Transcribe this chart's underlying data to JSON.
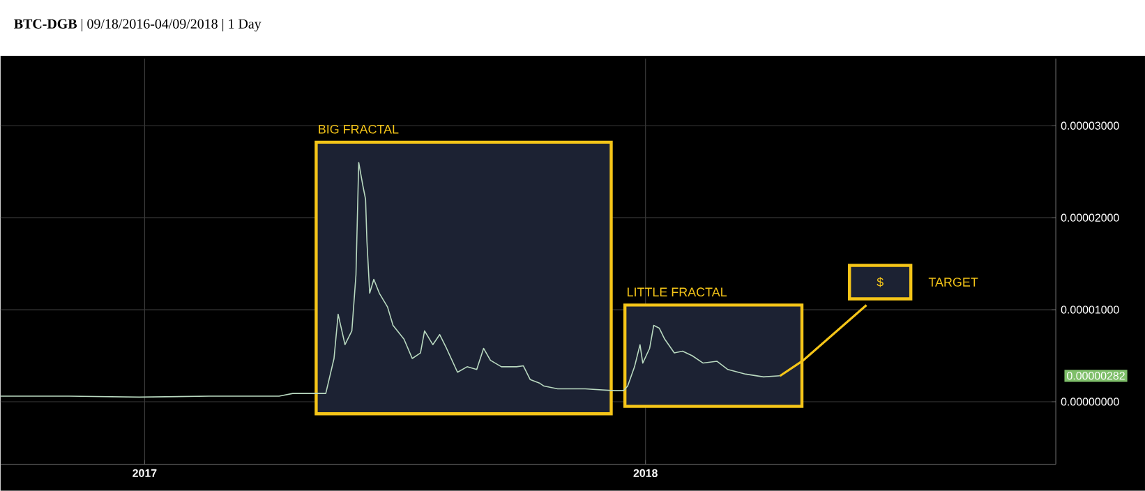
{
  "chart_data": {
    "type": "line",
    "title": "**BTC-DGB** | 09/18/2016-04/09/2018 | 1 Day",
    "x": [
      "2016-09-18",
      "2016-11-07",
      "2016-12-28",
      "2017-02-17",
      "2017-04-09",
      "2017-04-19",
      "2017-05-13",
      "2017-05-19",
      "2017-05-22",
      "2017-05-27",
      "2017-06-01",
      "2017-06-04",
      "2017-06-06",
      "2017-06-09",
      "2017-06-11",
      "2017-06-12",
      "2017-06-14",
      "2017-06-17",
      "2017-06-21",
      "2017-06-27",
      "2017-07-01",
      "2017-07-09",
      "2017-07-15",
      "2017-07-21",
      "2017-07-24",
      "2017-07-30",
      "2017-08-04",
      "2017-08-09",
      "2017-08-17",
      "2017-08-24",
      "2017-08-31",
      "2017-09-05",
      "2017-09-10",
      "2017-09-18",
      "2017-09-29",
      "2017-10-04",
      "2017-10-09",
      "2017-10-16",
      "2017-10-19",
      "2017-10-29",
      "2017-11-18",
      "2017-12-09",
      "2017-12-16",
      "2017-12-19",
      "2017-12-24",
      "2017-12-28",
      "2017-12-30",
      "2018-01-04",
      "2018-01-07",
      "2018-01-11",
      "2018-01-15",
      "2018-01-22",
      "2018-01-28",
      "2018-02-04",
      "2018-02-12",
      "2018-02-22",
      "2018-03-02",
      "2018-03-15",
      "2018-03-28",
      "2018-04-09"
    ],
    "series": [
      {
        "color": "#b9d9c0",
        "values": [
          6e-07,
          6e-07,
          5e-07,
          6e-07,
          6e-07,
          9e-07,
          9e-07,
          4.7e-06,
          9.5e-06,
          6.2e-06,
          7.7e-06,
          1.38e-05,
          2.6e-05,
          2.35e-05,
          2.2e-05,
          1.74e-05,
          1.18e-05,
          1.33e-05,
          1.18e-05,
          1.03e-05,
          8.3e-06,
          6.8e-06,
          4.7e-06,
          5.3e-06,
          7.7e-06,
          6.2e-06,
          7.3e-06,
          5.8e-06,
          3.2e-06,
          3.8e-06,
          3.5e-06,
          5.8e-06,
          4.5e-06,
          3.8e-06,
          3.8e-06,
          3.9e-06,
          2.4e-06,
          2e-06,
          1.7e-06,
          1.4e-06,
          1.4e-06,
          1.2e-06,
          1.2e-06,
          1.7e-06,
          3.8e-06,
          6.2e-06,
          4.2e-06,
          5.8e-06,
          8.3e-06,
          8e-06,
          6.8e-06,
          5.3e-06,
          5.5e-06,
          5e-06,
          4.2e-06,
          4.4e-06,
          3.5e-06,
          3e-06,
          2.7e-06,
          2.82e-06
        ]
      },
      {
        "type": "line",
        "color": "#f5c518",
        "x": [
          "2018-04-09",
          "2018-04-26",
          "2018-06-11"
        ],
        "values": [
          2.8e-06,
          4.5e-06,
          1.05e-05
        ]
      }
    ],
    "xlim": [
      "2016-09-18",
      "2018-10-27"
    ],
    "xticks": [
      {
        "value": "2017-01-01",
        "label": "2017"
      },
      {
        "value": "2018-01-01",
        "label": "2018"
      }
    ],
    "ylim": [
      -6.8e-06,
      3.73e-05
    ],
    "yticks": [
      {
        "value": 0,
        "label": "0.00000000"
      },
      {
        "value": 1e-05,
        "label": "0.00001000"
      },
      {
        "value": 2e-05,
        "label": "0.00002000"
      },
      {
        "value": 3e-05,
        "label": "0.00003000"
      }
    ],
    "grid": true,
    "bands": [
      {
        "axis": "x",
        "from": "2017-05-06",
        "to": "2017-12-07",
        "label": "BIG FRACTAL",
        "color": "#f5c518"
      },
      {
        "axis": "x",
        "from": "2017-12-17",
        "to": "2018-04-25",
        "label": "LITTLE FRACTAL",
        "color": "#f5c518"
      }
    ],
    "annotations": [
      {
        "text": "$",
        "x": "2018-06-21",
        "y": 1.3e-05
      },
      "TARGET",
      "0.00000282"
    ]
  }
}
